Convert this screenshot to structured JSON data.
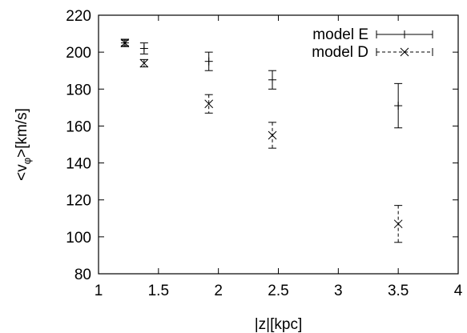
{
  "chart_data": {
    "type": "scatter",
    "title": "",
    "xlabel": "|z|[kpc]",
    "ylabel": "<v",
    "ylabel_subscript": "φ",
    "ylabel_suffix": ">[km/s]",
    "xlim": [
      1,
      4
    ],
    "ylim": [
      80,
      220
    ],
    "x_ticks": [
      1,
      1.5,
      2,
      2.5,
      3,
      3.5,
      4
    ],
    "x_tick_labels": [
      "1",
      "1.5",
      "2",
      "2.5",
      "3",
      "3.5",
      "4"
    ],
    "y_ticks": [
      80,
      100,
      120,
      140,
      160,
      180,
      200,
      220
    ],
    "y_tick_labels": [
      "80",
      "100",
      "120",
      "140",
      "160",
      "180",
      "200",
      "220"
    ],
    "grid": false,
    "legend_position": "top-right",
    "series": [
      {
        "name": "model E",
        "marker": "plus",
        "line_style": "solid",
        "color": "#000000",
        "points": [
          {
            "x": 1.22,
            "y": 205,
            "err": 2
          },
          {
            "x": 1.38,
            "y": 202,
            "err": 3
          },
          {
            "x": 1.92,
            "y": 195,
            "err": 5
          },
          {
            "x": 2.45,
            "y": 185,
            "err": 5
          },
          {
            "x": 3.5,
            "y": 171,
            "err": 12
          }
        ]
      },
      {
        "name": "model D",
        "marker": "cross",
        "line_style": "dashed",
        "color": "#000000",
        "points": [
          {
            "x": 1.22,
            "y": 205,
            "err": 1.5
          },
          {
            "x": 1.38,
            "y": 194,
            "err": 2
          },
          {
            "x": 1.92,
            "y": 172,
            "err": 5
          },
          {
            "x": 2.45,
            "y": 155,
            "err": 7
          },
          {
            "x": 3.5,
            "y": 107,
            "err": 10
          }
        ]
      }
    ]
  }
}
